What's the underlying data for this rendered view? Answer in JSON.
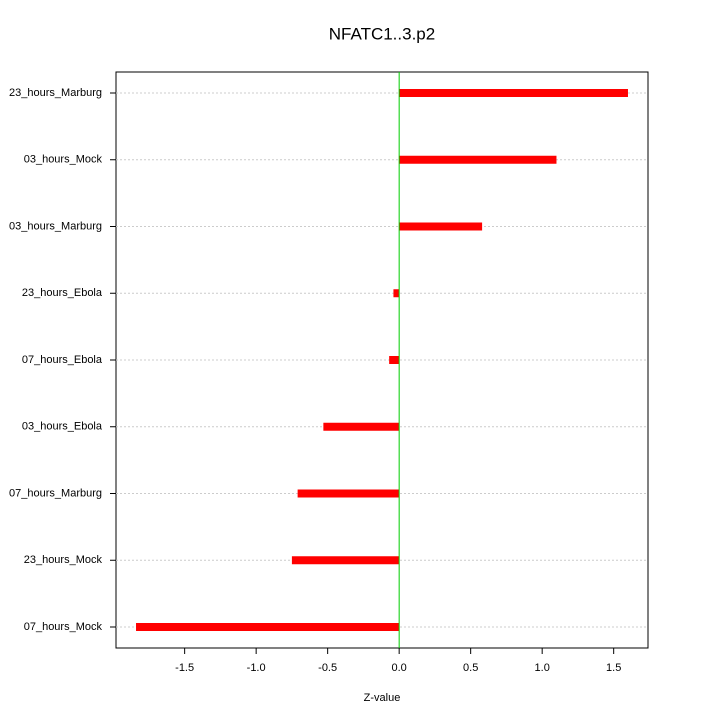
{
  "chart_data": {
    "type": "hbar",
    "title": "NFATC1..3.p2",
    "x_label": "Z-value",
    "categories": [
      "23_hours_Marburg",
      "03_hours_Mock",
      "03_hours_Marburg",
      "23_hours_Ebola",
      "07_hours_Ebola",
      "03_hours_Ebola",
      "07_hours_Marburg",
      "23_hours_Mock",
      "07_hours_Mock"
    ],
    "values": [
      1.6,
      1.1,
      0.58,
      -0.04,
      -0.07,
      -0.53,
      -0.71,
      -0.75,
      -1.84
    ],
    "color": "#ff0000",
    "zero_line_color": "#00cc00",
    "xlim": [
      -1.98,
      1.74
    ],
    "xticks": [
      -1.5,
      {
        "value": -1,
        "label": "-1.0"
      },
      -0.5,
      {
        "value": 0,
        "label": "0.0"
      },
      0.5,
      {
        "value": 1,
        "label": "1.0"
      },
      1.5
    ],
    "grid": true
  }
}
